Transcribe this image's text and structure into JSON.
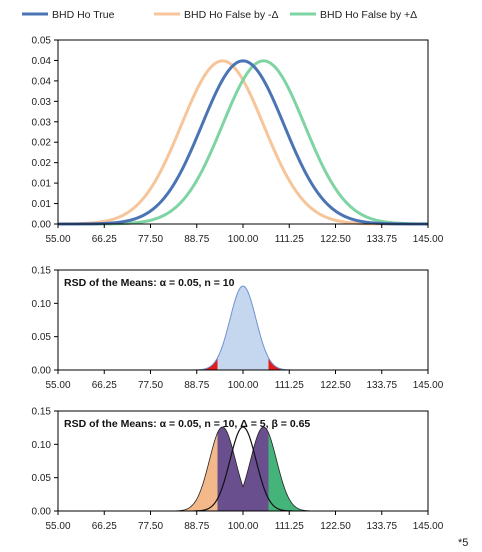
{
  "legend": [
    {
      "label": "BHD Ho True",
      "color": "#4a74b4"
    },
    {
      "label": "BHD Ho False by -Δ",
      "color": "#f7c59a"
    },
    {
      "label": "BHD Ho False by +Δ",
      "color": "#7fd4a4"
    }
  ],
  "footnote": "*5",
  "chart_data": [
    {
      "type": "line",
      "title": "",
      "x_ticks": [
        "55.00",
        "66.25",
        "77.50",
        "88.75",
        "100.00",
        "111.25",
        "122.50",
        "133.75",
        "145.00"
      ],
      "y_ticks": [
        "0.00",
        "0.01",
        "0.01",
        "0.02",
        "0.02",
        "0.03",
        "0.03",
        "0.04",
        "0.04",
        "0.05"
      ],
      "xlim": [
        55,
        145
      ],
      "ylim": [
        0,
        0.045
      ],
      "grid": false,
      "legend_position": "top",
      "series": [
        {
          "name": "BHD Ho True",
          "distribution": "normal",
          "mean": 100,
          "sd": 10,
          "peak": 0.0399,
          "color": "#4a74b4"
        },
        {
          "name": "BHD Ho False by -Δ",
          "distribution": "normal",
          "mean": 95,
          "sd": 10,
          "peak": 0.0399,
          "color": "#f7c59a"
        },
        {
          "name": "BHD Ho False by +Δ",
          "distribution": "normal",
          "mean": 105,
          "sd": 10,
          "peak": 0.0399,
          "color": "#7fd4a4"
        }
      ]
    },
    {
      "type": "area",
      "title": "RSD of the Means: α = 0.05, n = 10",
      "x_ticks": [
        "55.00",
        "66.25",
        "77.50",
        "88.75",
        "100.00",
        "111.25",
        "122.50",
        "133.75",
        "145.00"
      ],
      "y_ticks": [
        "0.00",
        "0.05",
        "0.10",
        "0.15"
      ],
      "xlim": [
        55,
        145
      ],
      "ylim": [
        0,
        0.15
      ],
      "grid": false,
      "series": [
        {
          "distribution": "normal",
          "mean": 100,
          "sd": 3.162,
          "peak": 0.126,
          "fill": "#c5d6ef",
          "stroke": "#6f93cf"
        }
      ],
      "rejection_regions": {
        "lower": 93.8,
        "upper": 106.2,
        "fill": "#e31b1b"
      }
    },
    {
      "type": "area",
      "title": "RSD of the Means: α = 0.05, n = 10, Δ = 5, β = 0.65",
      "x_ticks": [
        "55.00",
        "66.25",
        "77.50",
        "88.75",
        "100.00",
        "111.25",
        "122.50",
        "133.75",
        "145.00"
      ],
      "y_ticks": [
        "0.00",
        "0.05",
        "0.10",
        "0.15"
      ],
      "xlim": [
        55,
        145
      ],
      "ylim": [
        0,
        0.15
      ],
      "grid": false,
      "series": [
        {
          "distribution": "normal",
          "mean": 95,
          "sd": 3.162,
          "peak": 0.126,
          "fill": "#f4b98b",
          "stroke": "#222222",
          "clip_max": 100
        },
        {
          "distribution": "normal",
          "mean": 105,
          "sd": 3.162,
          "peak": 0.126,
          "fill": "#45b47a",
          "stroke": "#222222",
          "clip_min": 100
        },
        {
          "distribution": "normal",
          "mean": 100,
          "sd": 3.162,
          "peak": 0.126,
          "fill": "none",
          "stroke": "#111111"
        }
      ],
      "acceptance_region": {
        "lower": 93.8,
        "upper": 106.2,
        "fill": "#6a4f8e"
      }
    }
  ]
}
